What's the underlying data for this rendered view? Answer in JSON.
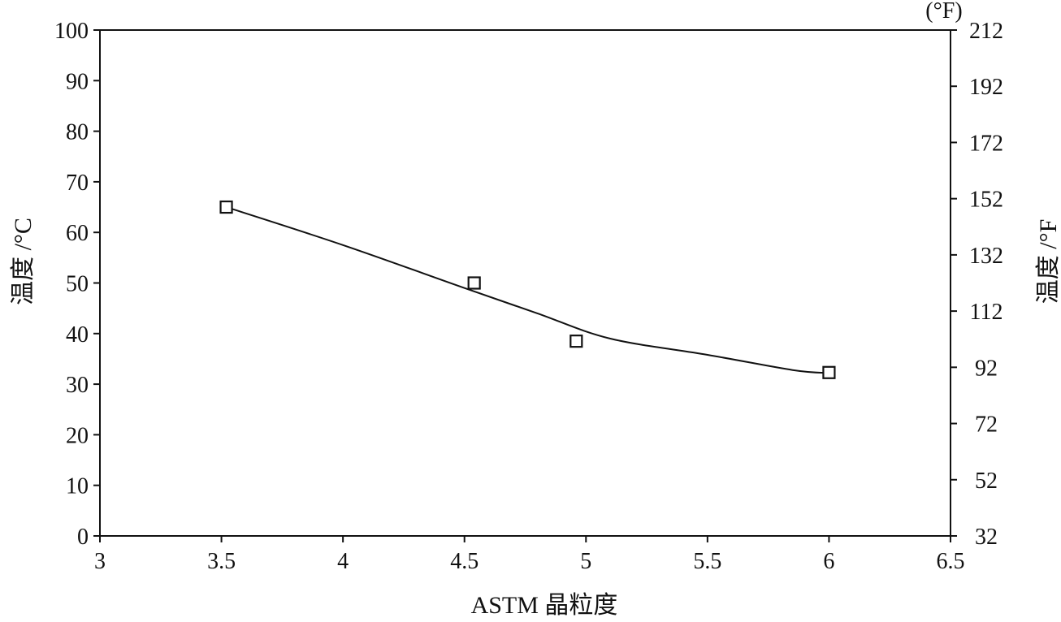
{
  "chart_data": {
    "type": "scatter",
    "xlabel": "ASTM 晶粒度",
    "ylabel_left": "温度 /°C",
    "ylabel_right": "温度 /°F",
    "right_unit_label": "(°F)",
    "xlim": [
      3,
      6.5
    ],
    "ylim_left": [
      0,
      100
    ],
    "ylim_right": [
      32,
      212
    ],
    "x_ticks": [
      3,
      3.5,
      4,
      4.5,
      5,
      5.5,
      6,
      6.5
    ],
    "x_tick_labels": [
      "3",
      "3.5",
      "4",
      "4.5",
      "5",
      "5.5",
      "6",
      "6.5"
    ],
    "y_left_ticks": [
      0,
      10,
      20,
      30,
      40,
      50,
      60,
      70,
      80,
      90,
      100
    ],
    "y_left_tick_labels": [
      "0",
      "10",
      "20",
      "30",
      "40",
      "50",
      "60",
      "70",
      "80",
      "90",
      "100"
    ],
    "y_right_ticks": [
      32,
      52,
      72,
      92,
      112,
      132,
      152,
      172,
      192,
      212
    ],
    "y_right_tick_labels": [
      "32",
      "52",
      "72",
      "92",
      "112",
      "132",
      "152",
      "172",
      "192",
      "212"
    ],
    "grid": false,
    "series": [
      {
        "marker": "square",
        "x": [
          3.52,
          4.54,
          4.96,
          6.0
        ],
        "y": [
          65,
          50,
          38.5,
          32.3
        ]
      }
    ],
    "fit_curve": {
      "x": [
        3.52,
        4.0,
        4.5,
        4.8,
        5.1,
        5.5,
        5.85,
        6.0
      ],
      "y": [
        65,
        57.5,
        49,
        44,
        39,
        35.8,
        32.8,
        32.2
      ]
    }
  }
}
